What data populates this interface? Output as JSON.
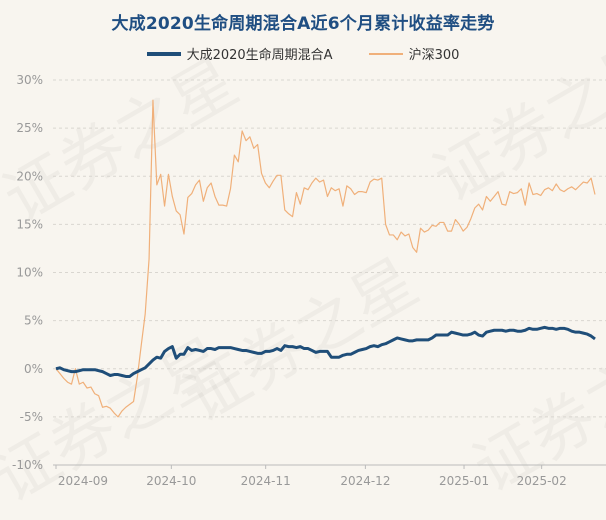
{
  "title": "大成2020生命周期混合A近6个月累计收益率走势",
  "watermark_text": "证券之星",
  "legend": [
    {
      "name": "大成2020生命周期混合A",
      "color": "#1f4e79"
    },
    {
      "name": "沪深300",
      "color": "#f0b07a"
    }
  ],
  "chart_data": {
    "type": "line",
    "title": "大成2020生命周期混合A近6个月累计收益率走势",
    "xlabel": "",
    "ylabel": "",
    "ylim": [
      -10,
      30
    ],
    "y_ticks": [
      "30%",
      "25%",
      "20%",
      "15%",
      "10%",
      "5%",
      "0%",
      "-5%",
      "-10%"
    ],
    "x_tick_labels": [
      "2024-09",
      "2024-10",
      "2024-11",
      "2024-12",
      "2025-01",
      "2025-02"
    ],
    "grid": "horizontal dashed",
    "legend_position": "top-center",
    "series": [
      {
        "name": "大成2020生命周期混合A",
        "color": "#1f4e79",
        "values": [
          0.0,
          0.1,
          -0.1,
          -0.2,
          -0.3,
          -0.3,
          -0.2,
          -0.1,
          -0.1,
          -0.1,
          -0.1,
          -0.2,
          -0.3,
          -0.5,
          -0.7,
          -0.6,
          -0.6,
          -0.7,
          -0.8,
          -0.8,
          -0.5,
          -0.3,
          -0.1,
          0.1,
          0.5,
          0.9,
          1.2,
          1.1,
          1.8,
          2.1,
          2.3,
          1.1,
          1.5,
          1.5,
          2.2,
          1.9,
          2.0,
          1.9,
          1.8,
          2.1,
          2.1,
          2.0,
          2.2,
          2.2,
          2.2,
          2.2,
          2.1,
          2.0,
          1.9,
          1.9,
          1.8,
          1.7,
          1.6,
          1.6,
          1.8,
          1.8,
          1.9,
          2.1,
          1.9,
          2.4,
          2.3,
          2.3,
          2.2,
          2.3,
          2.1,
          2.1,
          1.9,
          1.7,
          1.8,
          1.8,
          1.8,
          1.2,
          1.2,
          1.2,
          1.4,
          1.5,
          1.5,
          1.7,
          1.9,
          2.0,
          2.1,
          2.3,
          2.4,
          2.3,
          2.5,
          2.6,
          2.8,
          3.0,
          3.2,
          3.1,
          3.0,
          2.9,
          2.9,
          3.0,
          3.0,
          3.0,
          3.0,
          3.2,
          3.5,
          3.5,
          3.5,
          3.5,
          3.8,
          3.7,
          3.6,
          3.5,
          3.5,
          3.6,
          3.8,
          3.5,
          3.4,
          3.8,
          3.9,
          4.0,
          4.0,
          4.0,
          3.9,
          4.0,
          4.0,
          3.9,
          3.9,
          4.0,
          4.2,
          4.1,
          4.1,
          4.2,
          4.3,
          4.2,
          4.2,
          4.1,
          4.2,
          4.2,
          4.1,
          3.9,
          3.8,
          3.8,
          3.7,
          3.6,
          3.4,
          3.1
        ]
      },
      {
        "name": "沪深300",
        "color": "#f0b07a",
        "values": [
          0.0,
          -0.5,
          -1.0,
          -1.4,
          -1.6,
          0.0,
          -1.6,
          -1.4,
          -2.0,
          -1.9,
          -2.6,
          -2.8,
          -4.0,
          -3.9,
          -4.1,
          -4.6,
          -5.0,
          -4.4,
          -4.0,
          -3.7,
          -3.4,
          -0.8,
          2.5,
          5.7,
          11.4,
          27.9,
          19.1,
          20.2,
          16.9,
          20.2,
          17.9,
          16.4,
          16.0,
          14.0,
          17.8,
          18.2,
          19.1,
          19.6,
          17.4,
          18.8,
          19.3,
          17.9,
          17.0,
          17.0,
          16.9,
          18.7,
          22.2,
          21.5,
          24.7,
          23.7,
          24.1,
          22.9,
          23.3,
          20.3,
          19.3,
          18.8,
          19.5,
          20.1,
          20.1,
          16.5,
          16.1,
          15.8,
          18.3,
          17.1,
          18.8,
          18.6,
          19.3,
          19.8,
          19.4,
          19.6,
          17.9,
          18.8,
          18.5,
          18.7,
          16.9,
          19.0,
          18.7,
          18.1,
          18.4,
          18.4,
          18.3,
          19.4,
          19.7,
          19.6,
          19.8,
          15.0,
          13.9,
          13.9,
          13.4,
          14.2,
          13.8,
          14.0,
          12.6,
          12.1,
          14.6,
          14.2,
          14.4,
          14.9,
          14.8,
          15.2,
          15.2,
          14.3,
          14.3,
          15.5,
          15.0,
          14.3,
          14.7,
          15.6,
          16.7,
          17.1,
          16.5,
          17.9,
          17.4,
          17.9,
          18.4,
          17.1,
          17.0,
          18.4,
          18.2,
          18.3,
          18.7,
          17.0,
          19.3,
          18.1,
          18.2,
          18.0,
          18.6,
          18.8,
          18.5,
          19.2,
          18.6,
          18.4,
          18.7,
          18.9,
          18.6,
          19.0,
          19.4,
          19.3,
          19.8,
          18.1
        ]
      }
    ]
  }
}
